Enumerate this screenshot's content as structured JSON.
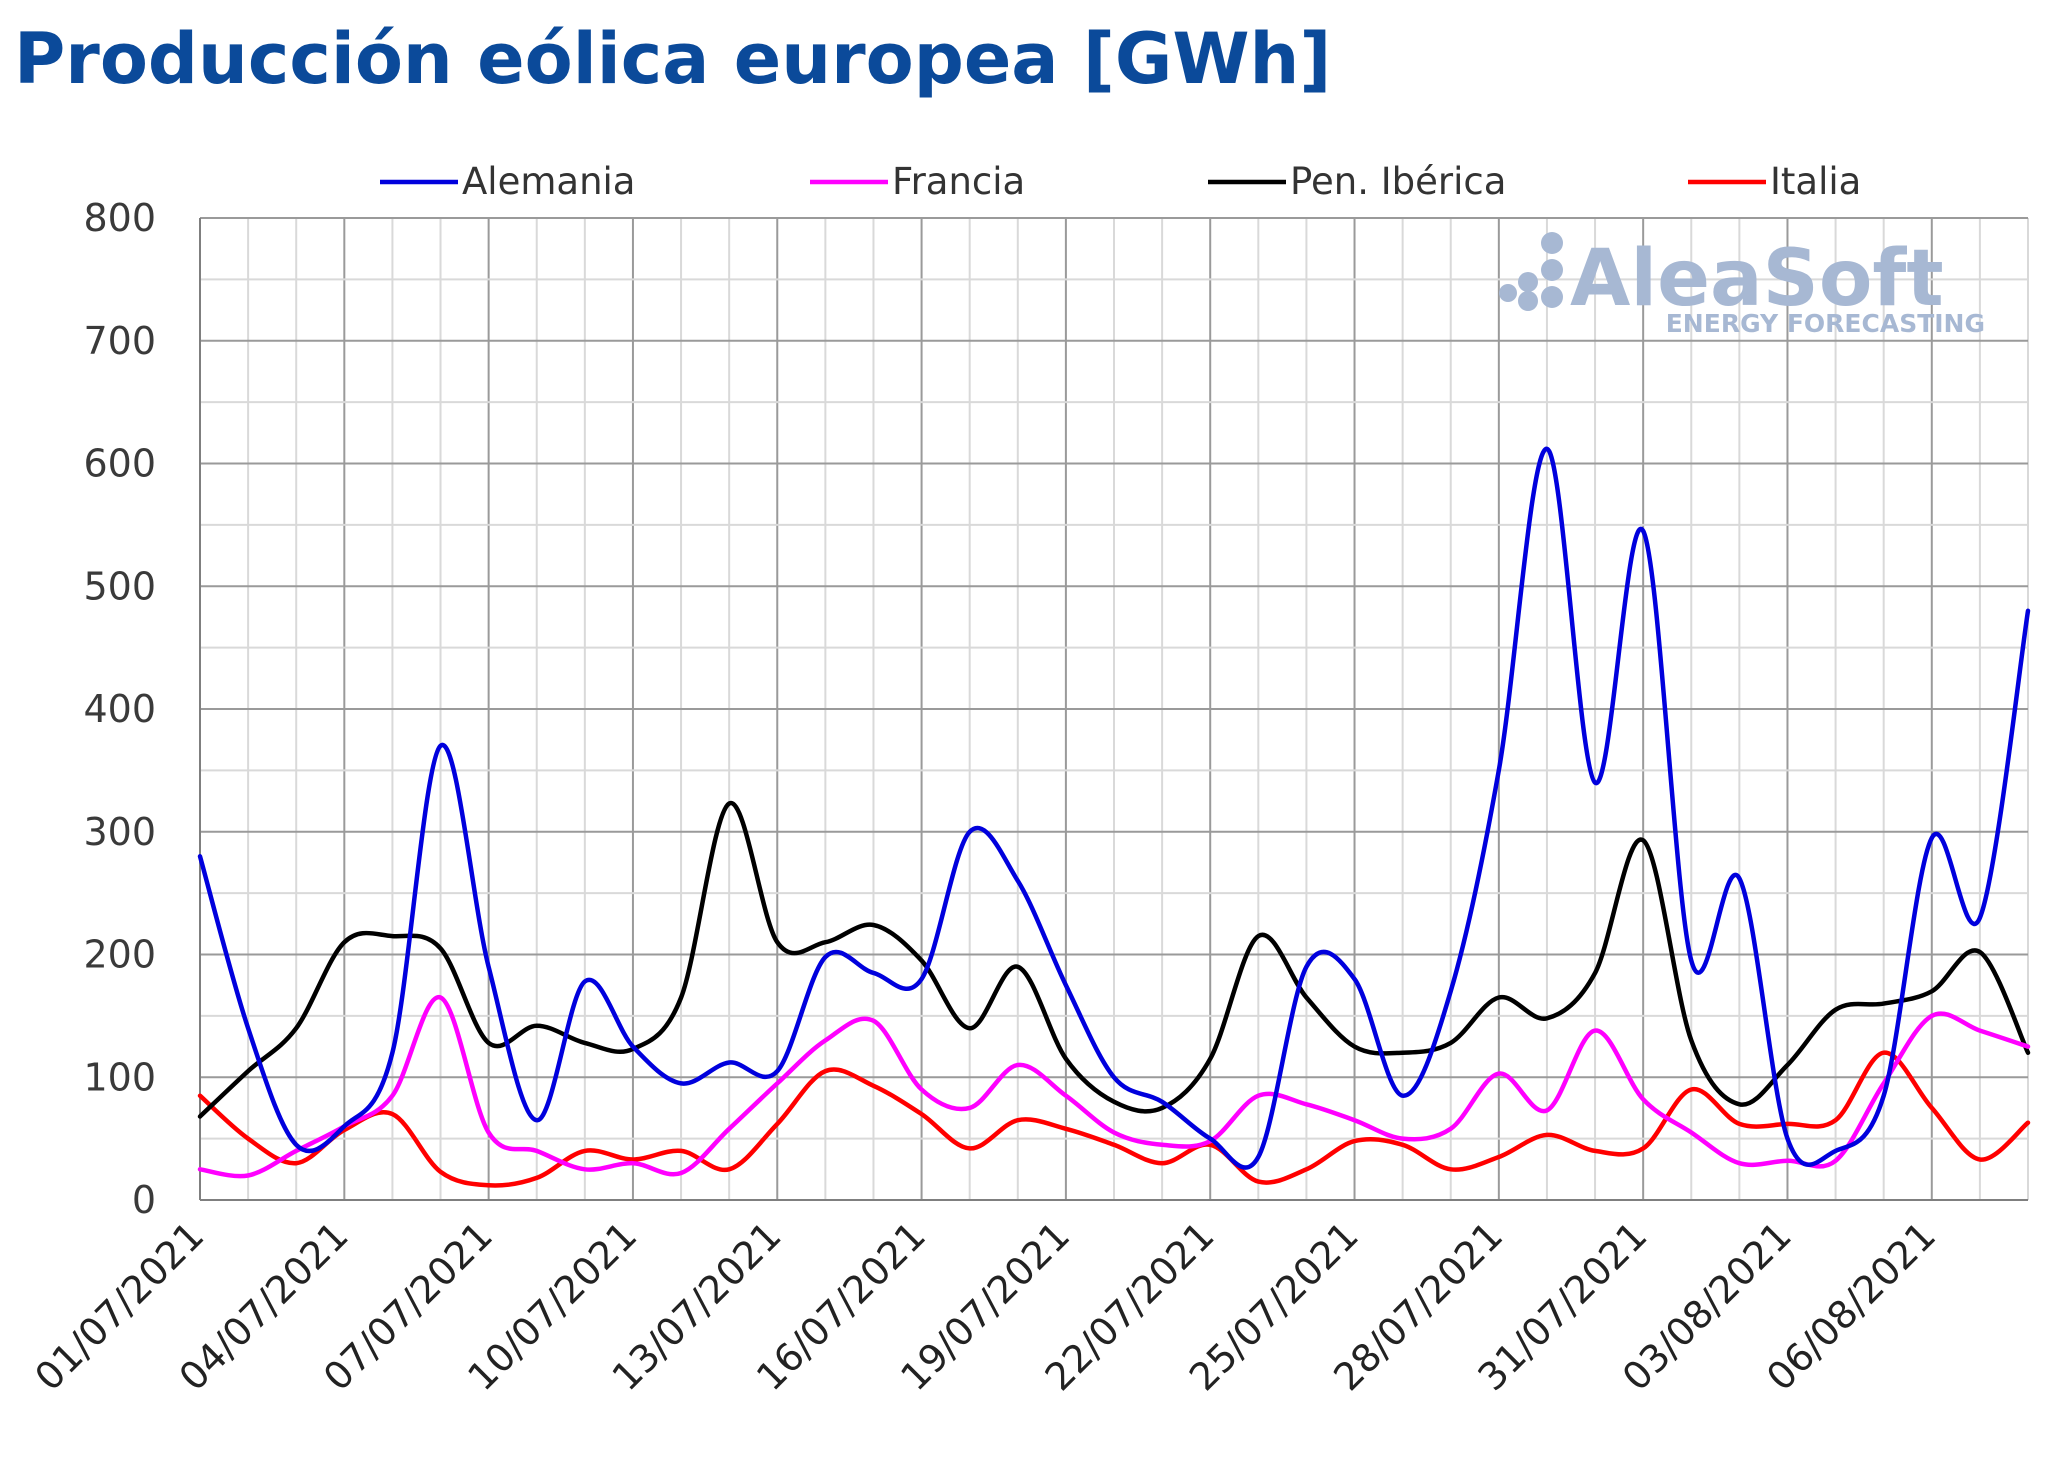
{
  "chart_data": {
    "type": "line",
    "title": "Producción eólica europea [GWh]",
    "xlabel": "",
    "ylabel": "",
    "ylim": [
      0,
      800
    ],
    "yticks": [
      0,
      100,
      200,
      300,
      400,
      500,
      600,
      700,
      800
    ],
    "grid": true,
    "legend_position": "top",
    "x": [
      "01/07/2021",
      "02/07/2021",
      "03/07/2021",
      "04/07/2021",
      "05/07/2021",
      "06/07/2021",
      "07/07/2021",
      "08/07/2021",
      "09/07/2021",
      "10/07/2021",
      "11/07/2021",
      "12/07/2021",
      "13/07/2021",
      "14/07/2021",
      "15/07/2021",
      "16/07/2021",
      "17/07/2021",
      "18/07/2021",
      "19/07/2021",
      "20/07/2021",
      "21/07/2021",
      "22/07/2021",
      "23/07/2021",
      "24/07/2021",
      "25/07/2021",
      "26/07/2021",
      "27/07/2021",
      "28/07/2021",
      "29/07/2021",
      "30/07/2021",
      "31/07/2021",
      "01/08/2021",
      "02/08/2021",
      "03/08/2021",
      "04/08/2021",
      "05/08/2021",
      "06/08/2021",
      "07/08/2021",
      "08/08/2021"
    ],
    "x_tick_labels": [
      "01/07/2021",
      "04/07/2021",
      "07/07/2021",
      "10/07/2021",
      "13/07/2021",
      "16/07/2021",
      "19/07/2021",
      "22/07/2021",
      "25/07/2021",
      "28/07/2021",
      "31/07/2021",
      "03/08/2021",
      "06/08/2021"
    ],
    "series": [
      {
        "name": "Alemania",
        "color": "#0000DD",
        "values": [
          280,
          140,
          45,
          60,
          120,
          370,
          190,
          65,
          178,
          125,
          95,
          112,
          105,
          198,
          185,
          180,
          300,
          260,
          175,
          100,
          80,
          50,
          35,
          190,
          180,
          85,
          170,
          350,
          612,
          340,
          545,
          195,
          262,
          50,
          40,
          85,
          295,
          230,
          480
        ]
      },
      {
        "name": "Francia",
        "color": "#FF00FF",
        "values": [
          25,
          20,
          40,
          60,
          85,
          165,
          55,
          40,
          25,
          30,
          22,
          58,
          95,
          130,
          146,
          90,
          75,
          110,
          85,
          55,
          45,
          48,
          85,
          78,
          65,
          50,
          58,
          103,
          73,
          138,
          82,
          55,
          30,
          32,
          32,
          95,
          150,
          138,
          125
        ]
      },
      {
        "name": "Pen. Ibérica",
        "color": "#000000",
        "values": [
          68,
          105,
          140,
          210,
          215,
          205,
          128,
          142,
          128,
          123,
          165,
          323,
          210,
          210,
          224,
          195,
          140,
          190,
          115,
          80,
          75,
          115,
          215,
          165,
          125,
          120,
          128,
          165,
          148,
          185,
          293,
          130,
          78,
          110,
          155,
          160,
          170,
          202,
          120
        ]
      },
      {
        "name": "Italia",
        "color": "#FF0000",
        "values": [
          85,
          50,
          30,
          57,
          70,
          23,
          12,
          18,
          40,
          33,
          40,
          25,
          62,
          105,
          93,
          70,
          42,
          65,
          58,
          45,
          30,
          45,
          15,
          25,
          48,
          45,
          25,
          35,
          53,
          40,
          42,
          90,
          62,
          62,
          65,
          120,
          75,
          33,
          63
        ]
      }
    ]
  },
  "watermark": {
    "brand": "AleaSoft",
    "tagline": "ENERGY FORECASTING"
  }
}
